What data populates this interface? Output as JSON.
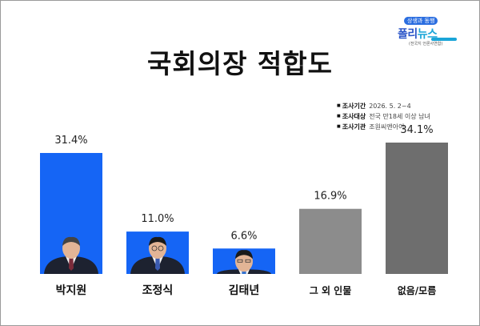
{
  "logo": {
    "tagline": "상생과 동행",
    "name_a": "폴리",
    "name_b": "뉴스",
    "sub": "(전국지 언론사연합)"
  },
  "info": [
    {
      "key": "조사기간",
      "value": "2026. 5. 2~4"
    },
    {
      "key": "조사대상",
      "value": "전국 만18세 이상 남녀"
    },
    {
      "key": "조사기관",
      "value": "조원씨앤아이"
    }
  ],
  "colors": {
    "candidate_bar": "#1565f5",
    "other_bar": "#8c8c8c",
    "none_bar": "#6e6e6e"
  },
  "chart_data": {
    "type": "bar",
    "title": "국회의장 적합도",
    "categories": [
      "박지원",
      "조정식",
      "김태년",
      "그 외 인물",
      "없음/모름"
    ],
    "values": [
      31.4,
      11.0,
      6.6,
      16.9,
      34.1
    ],
    "value_labels": [
      "31.4%",
      "11.0%",
      "6.6%",
      "16.9%",
      "34.1%"
    ],
    "unit": "%",
    "bar_colors": [
      "#1565f5",
      "#1565f5",
      "#1565f5",
      "#8c8c8c",
      "#6e6e6e"
    ],
    "has_photo": [
      true,
      true,
      true,
      false,
      false
    ],
    "ylim": [
      0,
      35
    ],
    "grid": false,
    "legend": "none"
  }
}
